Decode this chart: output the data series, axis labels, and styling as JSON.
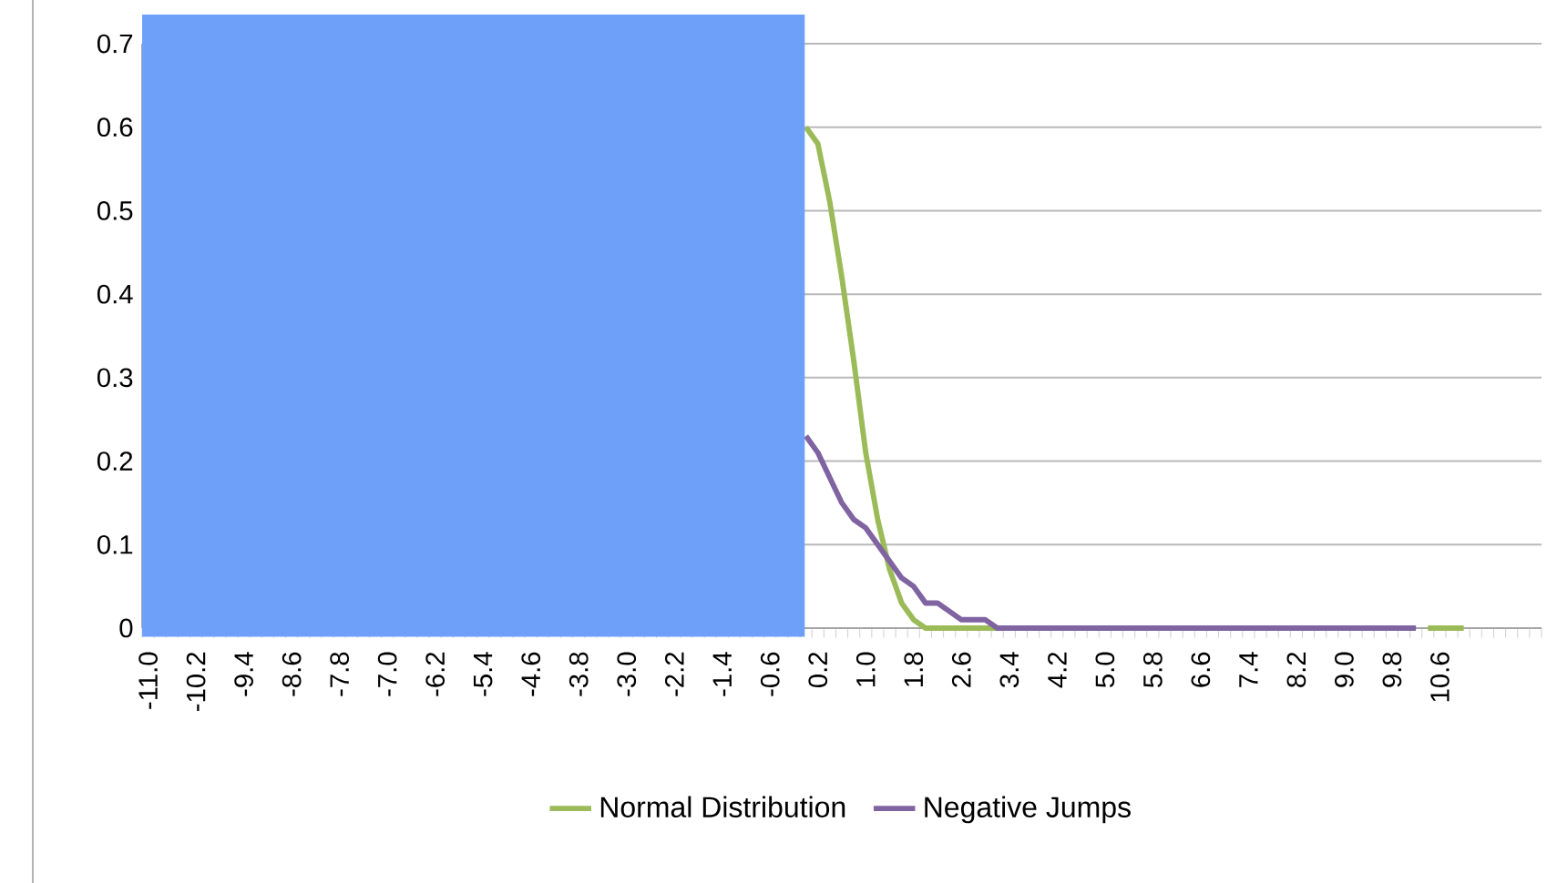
{
  "chart_data": {
    "type": "line",
    "categories": [
      "-11.0",
      null,
      null,
      null,
      "-10.2",
      null,
      null,
      null,
      "-9.4",
      null,
      null,
      null,
      "-8.6",
      null,
      null,
      null,
      "-7.8",
      null,
      null,
      null,
      "-7.0",
      null,
      null,
      null,
      "-6.2",
      null,
      null,
      null,
      "-5.4",
      null,
      null,
      null,
      "-4.6",
      null,
      null,
      null,
      "-3.8",
      null,
      null,
      null,
      "-3.0",
      null,
      null,
      null,
      "-2.2",
      null,
      null,
      null,
      "-1.4",
      null,
      null,
      null,
      "-0.6",
      null,
      null,
      null,
      "0.2",
      null,
      null,
      null,
      "1.0",
      null,
      null,
      null,
      "1.8",
      null,
      null,
      null,
      "2.6",
      null,
      null,
      null,
      "3.4",
      null,
      null,
      null,
      "4.2",
      null,
      null,
      null,
      "5.0",
      null,
      null,
      null,
      "5.8",
      null,
      null,
      null,
      "6.6",
      null,
      null,
      null,
      "7.4",
      null,
      null,
      null,
      "8.2",
      null,
      null,
      null,
      "9.0",
      null,
      null,
      null,
      "9.8",
      null,
      null,
      null,
      "10.6",
      null,
      null,
      null,
      null,
      null,
      null,
      null,
      null
    ],
    "series": [
      {
        "name": "Normal Distribution",
        "color": "#9bbb59",
        "values": [
          null,
          null,
          null,
          null,
          null,
          null,
          null,
          null,
          null,
          null,
          null,
          null,
          null,
          null,
          null,
          null,
          null,
          null,
          null,
          null,
          null,
          null,
          null,
          null,
          null,
          null,
          null,
          null,
          null,
          null,
          null,
          null,
          null,
          null,
          null,
          null,
          null,
          null,
          null,
          null,
          null,
          null,
          null,
          null,
          null,
          null,
          null,
          null,
          null,
          null,
          null,
          null,
          null,
          null,
          null,
          0.6,
          0.58,
          0.51,
          0.42,
          0.32,
          0.21,
          0.13,
          0.07,
          0.03,
          0.01,
          0,
          0,
          0,
          0,
          0,
          0,
          0,
          null,
          null,
          null,
          null,
          null,
          null,
          null,
          null,
          null,
          null,
          null,
          null,
          null,
          null,
          null,
          null,
          null,
          null,
          null,
          null,
          null,
          null,
          null,
          null,
          null,
          null,
          null,
          null,
          null,
          null,
          null,
          null,
          null,
          null,
          null,
          0,
          0,
          0,
          0,
          null,
          null,
          null,
          null,
          null,
          null
        ]
      },
      {
        "name": "Negative Jumps",
        "color": "#8064a2",
        "values": [
          null,
          null,
          null,
          null,
          null,
          null,
          null,
          null,
          null,
          null,
          null,
          null,
          null,
          null,
          null,
          null,
          null,
          null,
          null,
          null,
          null,
          null,
          null,
          null,
          null,
          null,
          null,
          null,
          null,
          null,
          null,
          null,
          null,
          null,
          null,
          null,
          null,
          null,
          null,
          null,
          null,
          null,
          null,
          null,
          null,
          null,
          null,
          null,
          null,
          null,
          null,
          null,
          null,
          null,
          null,
          0.23,
          0.21,
          0.18,
          0.15,
          0.13,
          0.12,
          0.1,
          0.08,
          0.06,
          0.05,
          0.03,
          0.03,
          0.02,
          0.01,
          0.01,
          0.01,
          0,
          0,
          0,
          0,
          0,
          0,
          0,
          0,
          0,
          0,
          0,
          0,
          0,
          0,
          0,
          0,
          0,
          0,
          0,
          0,
          0,
          0,
          0,
          0,
          0,
          0,
          0,
          0,
          0,
          0,
          0,
          0,
          0,
          0,
          0,
          0,
          null,
          null,
          null,
          null,
          null,
          null,
          null,
          null,
          null,
          null
        ]
      }
    ],
    "ylim": [
      0,
      0.7
    ],
    "yticks": [
      0,
      0.1,
      0.2,
      0.3,
      0.4,
      0.5,
      0.6,
      0.7
    ],
    "grid": "y",
    "legend": "bottom",
    "marker": "none",
    "line_style": "solid"
  }
}
